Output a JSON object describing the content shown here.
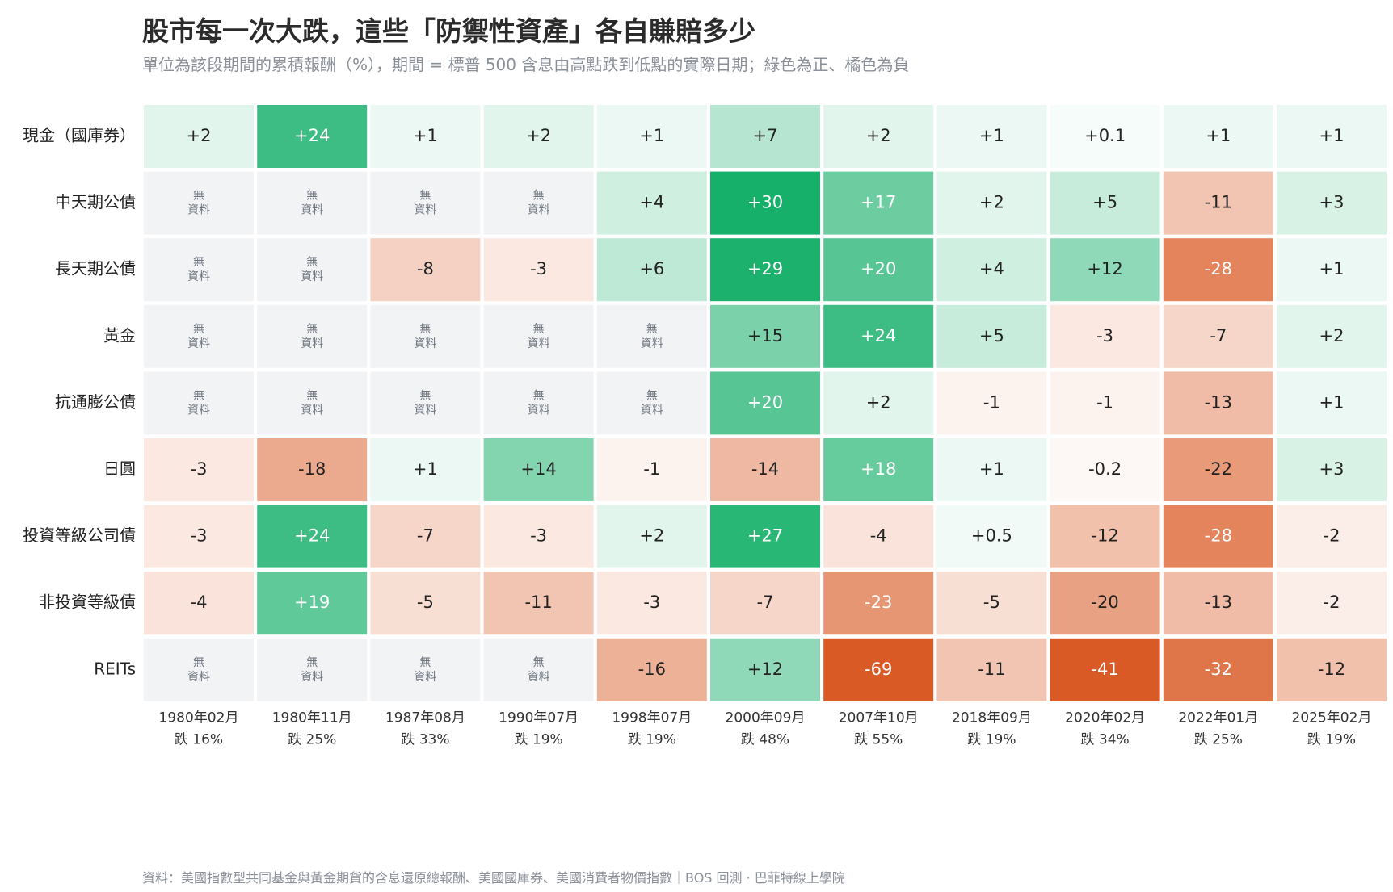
{
  "title": "股市每一次大跌，這些「防禦性資產」各自賺賠多少",
  "subtitle": "單位為該段期間的累積報酬（%），期間 = 標普 500 含息由高點跌到低點的實際日期；綠色為正、橘色為負",
  "source": "資料：美國指數型共同基金與黃金期貨的含息還原總報酬、美國國庫券、美國消費者物價指數｜BOS 回測 ·  巴菲特線上學院",
  "colors": {
    "positive": "#16b06a",
    "negative": "#d95a25",
    "na_fill": "#f1f3f5",
    "text_dark": "#222222",
    "text_light": "#ffffff"
  },
  "chart_data": {
    "type": "heatmap",
    "na_label": "無資料",
    "columns": [
      {
        "date": "1980年02月",
        "drop": "跌 16%"
      },
      {
        "date": "1980年11月",
        "drop": "跌 25%"
      },
      {
        "date": "1987年08月",
        "drop": "跌 33%"
      },
      {
        "date": "1990年07月",
        "drop": "跌 19%"
      },
      {
        "date": "1998年07月",
        "drop": "跌 19%"
      },
      {
        "date": "2000年09月",
        "drop": "跌 48%"
      },
      {
        "date": "2007年10月",
        "drop": "跌 55%"
      },
      {
        "date": "2018年09月",
        "drop": "跌 19%"
      },
      {
        "date": "2020年02月",
        "drop": "跌 34%"
      },
      {
        "date": "2022年01月",
        "drop": "跌 25%"
      },
      {
        "date": "2025年02月",
        "drop": "跌 19%"
      }
    ],
    "rows": [
      {
        "name": "現金（國庫券）",
        "values": [
          2,
          24,
          1,
          2,
          1,
          7,
          2,
          1,
          0.1,
          1,
          1
        ]
      },
      {
        "name": "中天期公債",
        "values": [
          null,
          null,
          null,
          null,
          4,
          30,
          17,
          2,
          5,
          -11,
          3
        ]
      },
      {
        "name": "長天期公債",
        "values": [
          null,
          null,
          -8,
          -3,
          6,
          29,
          20,
          4,
          12,
          -28,
          1
        ]
      },
      {
        "name": "黃金",
        "values": [
          null,
          null,
          null,
          null,
          null,
          15,
          24,
          5,
          -3,
          -7,
          2
        ]
      },
      {
        "name": "抗通膨公債",
        "values": [
          null,
          null,
          null,
          null,
          null,
          20,
          2,
          -1,
          -1,
          -13,
          1
        ]
      },
      {
        "name": "日圓",
        "values": [
          -3,
          -18,
          1,
          14,
          -1,
          -14,
          18,
          1,
          -0.2,
          -22,
          3
        ]
      },
      {
        "name": "投資等級公司債",
        "values": [
          -3,
          24,
          -7,
          -3,
          2,
          27,
          -4,
          0.5,
          -12,
          -28,
          -2
        ]
      },
      {
        "name": "非投資等級債",
        "values": [
          -4,
          19,
          -5,
          -11,
          -3,
          -7,
          -23,
          -5,
          -20,
          -13,
          -2
        ]
      },
      {
        "name": "REITs",
        "values": [
          null,
          null,
          null,
          null,
          -16,
          12,
          -69,
          -11,
          -41,
          -32,
          -12
        ]
      }
    ]
  }
}
